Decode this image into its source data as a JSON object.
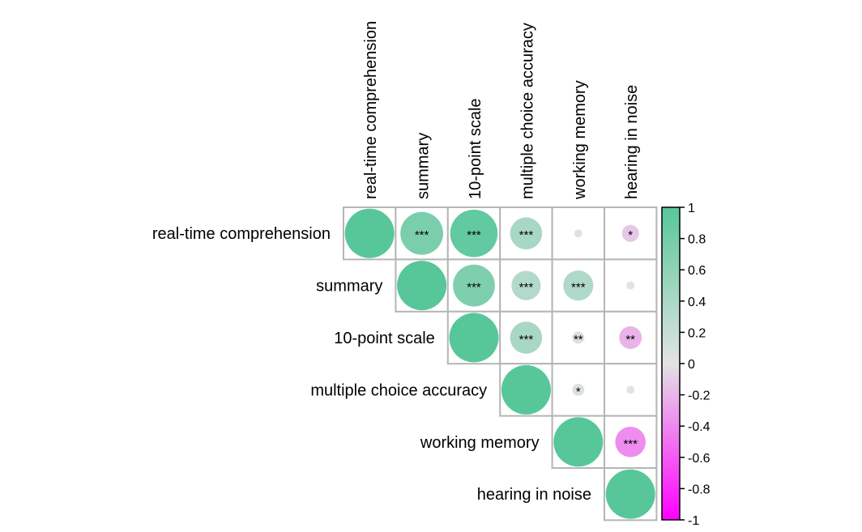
{
  "chart_data": {
    "type": "heatmap",
    "variables": [
      "real-time comprehension",
      "summary",
      "10-point scale",
      "multiple choice accuracy",
      "working memory",
      "hearing in noise"
    ],
    "layout": "upper-triangle",
    "matrix": [
      [
        1.0,
        0.75,
        0.92,
        0.42,
        0.02,
        -0.12
      ],
      [
        null,
        1.0,
        0.72,
        0.35,
        0.37,
        0.01
      ],
      [
        null,
        null,
        1.0,
        0.42,
        0.06,
        -0.21
      ],
      [
        null,
        null,
        null,
        1.0,
        0.06,
        0.01
      ],
      [
        null,
        null,
        null,
        null,
        1.0,
        -0.38
      ],
      [
        null,
        null,
        null,
        null,
        null,
        1.0
      ]
    ],
    "significance": [
      [
        "",
        "***",
        "***",
        "***",
        "",
        "*"
      ],
      [
        "",
        "",
        "***",
        "***",
        "***",
        ""
      ],
      [
        "",
        "",
        "",
        "***",
        "**",
        "**"
      ],
      [
        "",
        "",
        "",
        "",
        "*",
        ""
      ],
      [
        "",
        "",
        "",
        "",
        "",
        "***"
      ],
      [
        "",
        "",
        "",
        "",
        "",
        ""
      ]
    ],
    "colorbar": {
      "min": -1,
      "max": 1,
      "ticks": [
        "1",
        "0.8",
        "0.6",
        "0.4",
        "0.2",
        "0",
        "-0.2",
        "-0.4",
        "-0.6",
        "-0.8",
        "-1"
      ],
      "colors": {
        "negative": "#ff00ff",
        "zero": "#e3e3e3",
        "positive": "#57c79a"
      }
    }
  }
}
